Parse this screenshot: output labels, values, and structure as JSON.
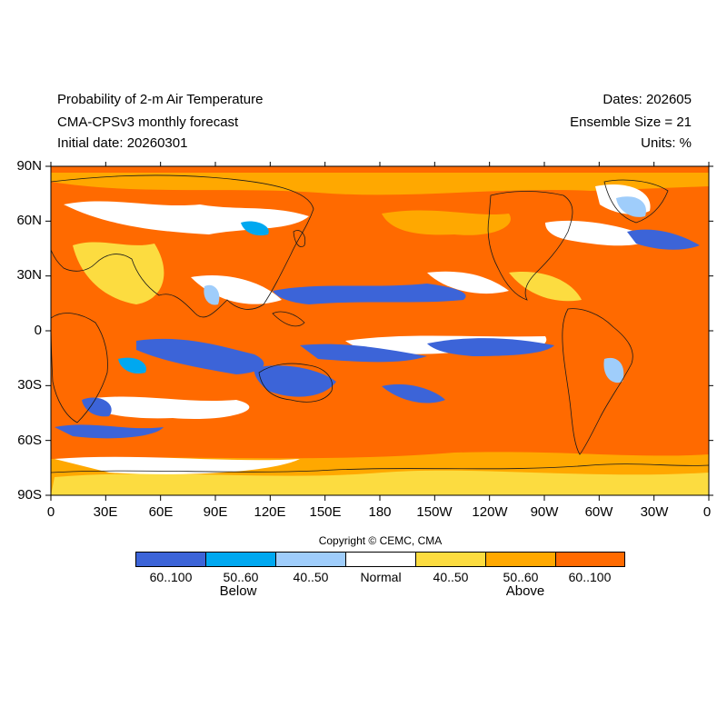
{
  "header": {
    "title_lines": [
      "Probability of 2-m Air Temperature",
      "CMA-CPSv3 monthly forecast",
      "Initial date: 20260301"
    ],
    "info_lines": [
      "Dates: 202605",
      "Ensemble Size = 21",
      "Units: %"
    ]
  },
  "map": {
    "projection": "equirectangular",
    "lon_range": [
      0,
      360
    ],
    "lat_range": [
      -90,
      90
    ],
    "lat_labels": [
      "90N",
      "60N",
      "30N",
      "0",
      "30S",
      "60S",
      "90S"
    ],
    "lon_labels": [
      "0",
      "30E",
      "60E",
      "90E",
      "120E",
      "150E",
      "180",
      "150W",
      "120W",
      "90W",
      "60W",
      "30W",
      "0"
    ]
  },
  "colorbar": {
    "copyright": "Copyright © CEMC, CMA",
    "categories": [
      {
        "label": "60..100",
        "color": "#3c64d8"
      },
      {
        "label": "50..60",
        "color": "#00a8f0"
      },
      {
        "label": "40..50",
        "color": "#9fcdfb"
      },
      {
        "label": "Normal",
        "color": "#ffffff"
      },
      {
        "label": "40..50",
        "color": "#fcdc40"
      },
      {
        "label": "50..60",
        "color": "#ffa800"
      },
      {
        "label": "60..100",
        "color": "#ff6a00"
      }
    ],
    "group_labels": {
      "below": "Below",
      "above": "Above"
    }
  }
}
